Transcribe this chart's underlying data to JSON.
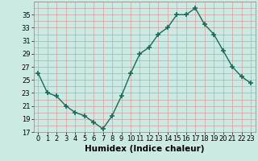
{
  "x": [
    0,
    1,
    2,
    3,
    4,
    5,
    6,
    7,
    8,
    9,
    10,
    11,
    12,
    13,
    14,
    15,
    16,
    17,
    18,
    19,
    20,
    21,
    22,
    23
  ],
  "y": [
    26,
    23,
    22.5,
    21,
    20,
    19.5,
    18.5,
    17.5,
    19.5,
    22.5,
    26,
    29,
    30,
    32,
    33,
    35,
    35,
    36,
    33.5,
    32,
    29.5,
    27,
    25.5,
    24.5
  ],
  "line_color": "#1a6b5a",
  "marker": "+",
  "markersize": 4,
  "markeredgewidth": 1.2,
  "linewidth": 1.0,
  "xlabel": "Humidex (Indice chaleur)",
  "ylabel": "",
  "xlim": [
    -0.5,
    23.5
  ],
  "ylim": [
    17,
    37
  ],
  "yticks": [
    17,
    19,
    21,
    23,
    25,
    27,
    29,
    31,
    33,
    35
  ],
  "xticks": [
    0,
    1,
    2,
    3,
    4,
    5,
    6,
    7,
    8,
    9,
    10,
    11,
    12,
    13,
    14,
    15,
    16,
    17,
    18,
    19,
    20,
    21,
    22,
    23
  ],
  "bg_color": "#cceae4",
  "grid_color": "#d4a0a0",
  "tick_fontsize": 6,
  "xlabel_fontsize": 7.5,
  "xlabel_fontweight": "bold"
}
